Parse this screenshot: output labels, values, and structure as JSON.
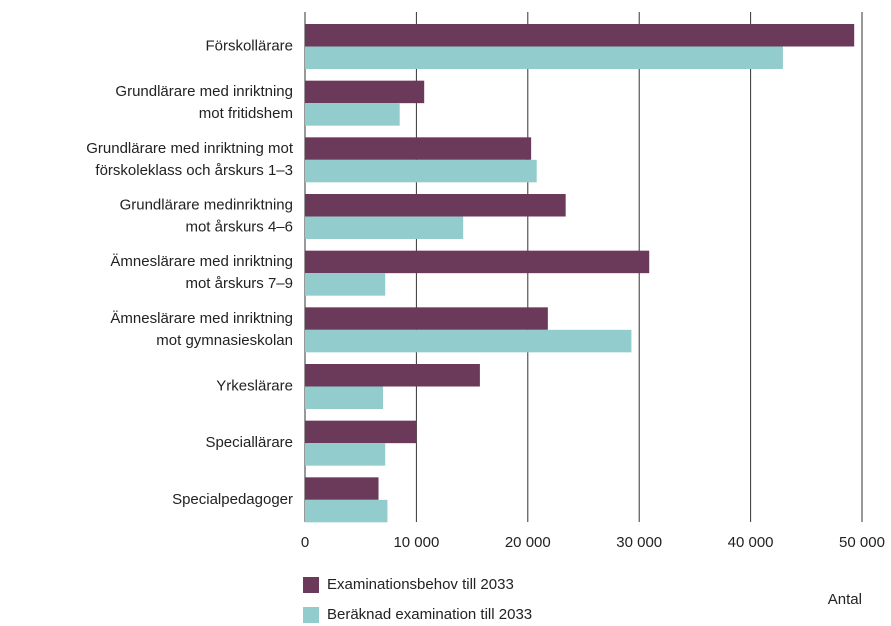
{
  "chart_data": {
    "type": "hbar",
    "categories": [
      "Förskollärare",
      "Grundlärare med inriktning\nmot fritidshem",
      "Grundlärare med inriktning mot\nförskoleklass och årskurs 1–3",
      "Grundlärare medinriktning\nmot årskurs 4–6",
      "Ämneslärare med inriktning\nmot årskurs 7–9",
      "Ämneslärare med inriktning\nmot gymnasieskolan",
      "Yrkeslärare",
      "Speciallärare",
      "Specialpedagoger"
    ],
    "series": [
      {
        "name": "Examinationsbehov till 2033",
        "color": "#6b3a5a",
        "values": [
          49300,
          10700,
          20300,
          23400,
          30900,
          21800,
          15700,
          10000,
          6600
        ]
      },
      {
        "name": "Beräknad examination till 2033",
        "color": "#93cccc",
        "values": [
          42900,
          8500,
          20800,
          14200,
          7200,
          29300,
          7000,
          7200,
          7400
        ]
      }
    ],
    "xlabel": "Antal",
    "xlim": [
      0,
      50000
    ],
    "xticks": [
      0,
      {
        "value": 10000,
        "label": "10 000"
      },
      {
        "value": 20000,
        "label": "20 000"
      },
      {
        "value": 30000,
        "label": "30 000"
      },
      {
        "value": 40000,
        "label": "40 000"
      },
      {
        "value": 50000,
        "label": "50 000"
      }
    ],
    "grid": true,
    "legend": "bottom"
  }
}
